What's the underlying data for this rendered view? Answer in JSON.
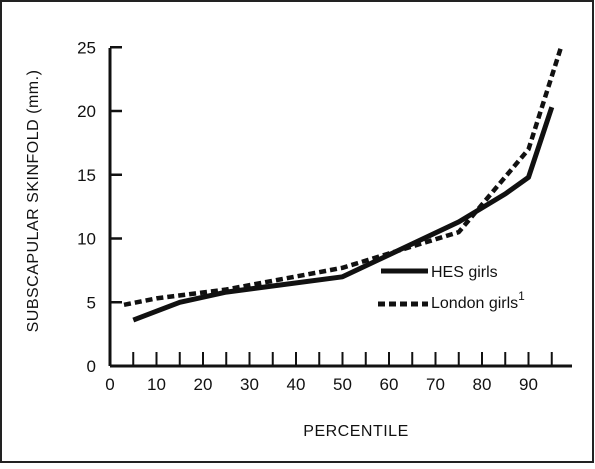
{
  "chart_data": {
    "type": "line",
    "title": "",
    "xlabel": "PERCENTILE",
    "ylabel": "SUBSCAPULAR SKINFOLD (mm.)",
    "xlim": [
      0,
      97
    ],
    "ylim": [
      0,
      25
    ],
    "x_ticks": [
      0,
      10,
      20,
      30,
      40,
      50,
      60,
      70,
      80,
      90
    ],
    "y_ticks": [
      0,
      5,
      10,
      15,
      20,
      25
    ],
    "x_tick_labels": [
      "0",
      "10",
      "20",
      "30",
      "40",
      "50",
      "60",
      "70",
      "80",
      "90"
    ],
    "y_tick_labels": [
      "0",
      "5",
      "10",
      "15",
      "20",
      "25"
    ],
    "grid": false,
    "legend_position": "inside-right",
    "series": [
      {
        "name": "HES girls",
        "style": "solid",
        "color": "#111111",
        "x": [
          5,
          10,
          15,
          25,
          50,
          75,
          85,
          90,
          95
        ],
        "y": [
          3.6,
          4.3,
          5.0,
          5.8,
          7.0,
          11.3,
          13.5,
          14.8,
          20.3
        ]
      },
      {
        "name": "London girls",
        "name_superscript": "1",
        "style": "dashed",
        "color": "#111111",
        "x": [
          3,
          10,
          25,
          50,
          75,
          90,
          97
        ],
        "y": [
          4.8,
          5.3,
          6.0,
          7.7,
          10.5,
          17.0,
          25.0
        ]
      }
    ]
  }
}
